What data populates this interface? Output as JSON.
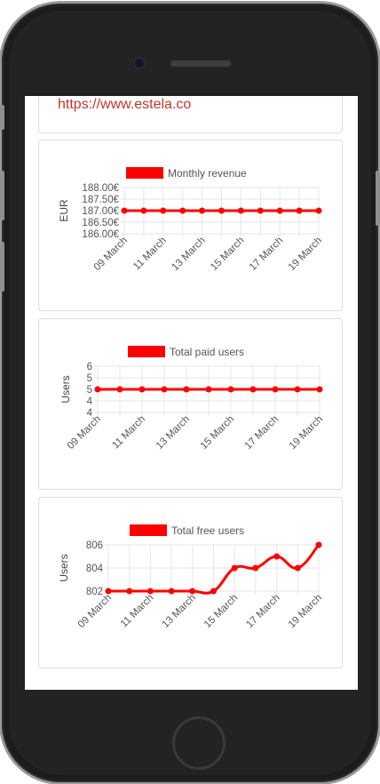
{
  "website": {
    "url": "https://www.estela.co"
  },
  "colors": {
    "series": "#ff0000",
    "grid": "#e6e6e6",
    "link": "#c0392b"
  },
  "charts": [
    {
      "id": "revenue",
      "legend": "Monthly revenue",
      "ylabel": "EUR",
      "chart_data": {
        "type": "line",
        "title": "",
        "series_name": "Monthly revenue",
        "ylabel": "EUR",
        "x": [
          "09 March",
          "10 March",
          "11 March",
          "12 March",
          "13 March",
          "14 March",
          "15 March",
          "16 March",
          "17 March",
          "18 March",
          "19 March"
        ],
        "values": [
          187,
          187,
          187,
          187,
          187,
          187,
          187,
          187,
          187,
          187,
          187
        ],
        "ylim": [
          186,
          188
        ],
        "yticks": [
          "188.00€",
          "187.50€",
          "187.00€",
          "186.50€",
          "186.00€"
        ],
        "xticks": [
          "09 March",
          "11 March",
          "13 March",
          "15 March",
          "17 March",
          "19 March"
        ],
        "grid": true,
        "legend_position": "top"
      }
    },
    {
      "id": "paid-users",
      "legend": "Total paid users",
      "ylabel": "Users",
      "chart_data": {
        "type": "line",
        "title": "",
        "series_name": "Total paid users",
        "ylabel": "Users",
        "x": [
          "09 March",
          "10 March",
          "11 March",
          "12 March",
          "13 March",
          "14 March",
          "15 March",
          "16 March",
          "17 March",
          "18 March",
          "19 March"
        ],
        "values": [
          5,
          5,
          5,
          5,
          5,
          5,
          5,
          5,
          5,
          5,
          5
        ],
        "ylim": [
          4,
          6
        ],
        "yticks": [
          "6",
          "5",
          "5",
          "4",
          "4"
        ],
        "xticks": [
          "09 March",
          "11 March",
          "13 March",
          "15 March",
          "17 March",
          "19 March"
        ],
        "grid": true,
        "legend_position": "top"
      }
    },
    {
      "id": "free-users",
      "legend": "Total free users",
      "ylabel": "Users",
      "chart_data": {
        "type": "line",
        "title": "",
        "series_name": "Total free users",
        "ylabel": "Users",
        "x": [
          "09 March",
          "10 March",
          "11 March",
          "12 March",
          "13 March",
          "14 March",
          "15 March",
          "16 March",
          "17 March",
          "18 March",
          "19 March"
        ],
        "values": [
          802,
          802,
          802,
          802,
          802,
          802,
          804,
          804,
          805,
          804,
          806
        ],
        "ylim": [
          802,
          806
        ],
        "yticks": [
          "806",
          "804",
          "802"
        ],
        "xticks": [
          "09 March",
          "11 March",
          "13 March",
          "15 March",
          "17 March",
          "19 March"
        ],
        "grid": true,
        "legend_position": "top"
      }
    }
  ]
}
